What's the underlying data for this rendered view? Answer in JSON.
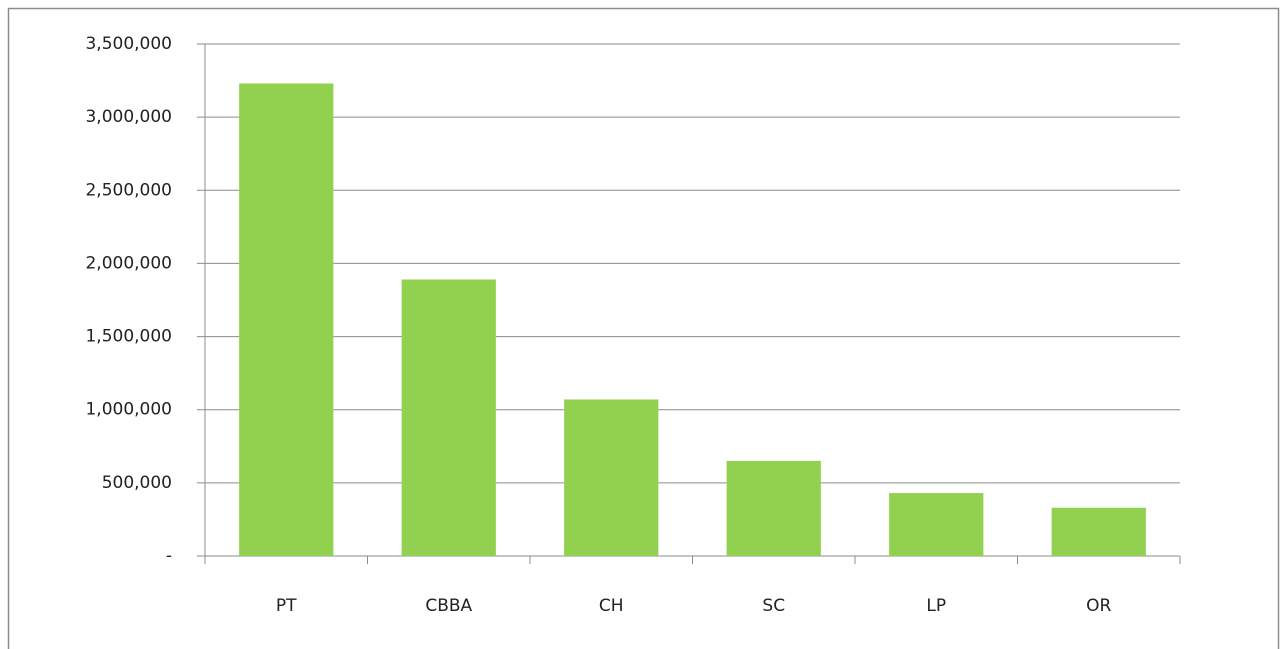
{
  "chart_data": {
    "type": "bar",
    "categories": [
      "PT",
      "CBBA",
      "CH",
      "SC",
      "LP",
      "OR"
    ],
    "values": [
      3230000,
      1890000,
      1070000,
      650000,
      430000,
      330000
    ],
    "color": "#92d050",
    "ylim": [
      0,
      3500000
    ],
    "yticks": [
      {
        "value": 0,
        "label": "-"
      },
      {
        "value": 500000,
        "label": "500,000"
      },
      {
        "value": 1000000,
        "label": "1,000,000"
      },
      {
        "value": 1500000,
        "label": "1,500,000"
      },
      {
        "value": 2000000,
        "label": "2,000,000"
      },
      {
        "value": 2500000,
        "label": "2,500,000"
      },
      {
        "value": 3000000,
        "label": "3,000,000"
      },
      {
        "value": 3500000,
        "label": "3,500,000"
      }
    ],
    "grid": true
  }
}
